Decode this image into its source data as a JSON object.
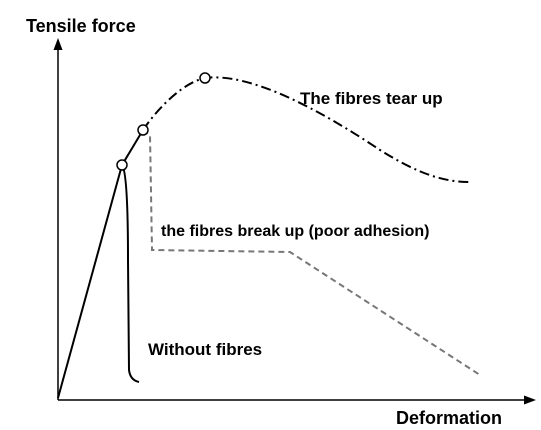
{
  "axes": {
    "y_label": "Tensile force",
    "x_label": "Deformation"
  },
  "curves": [
    {
      "label": "The fibres tear up"
    },
    {
      "label": "the fibres break up (poor adhesion)"
    },
    {
      "label": "Without fibres"
    }
  ]
}
